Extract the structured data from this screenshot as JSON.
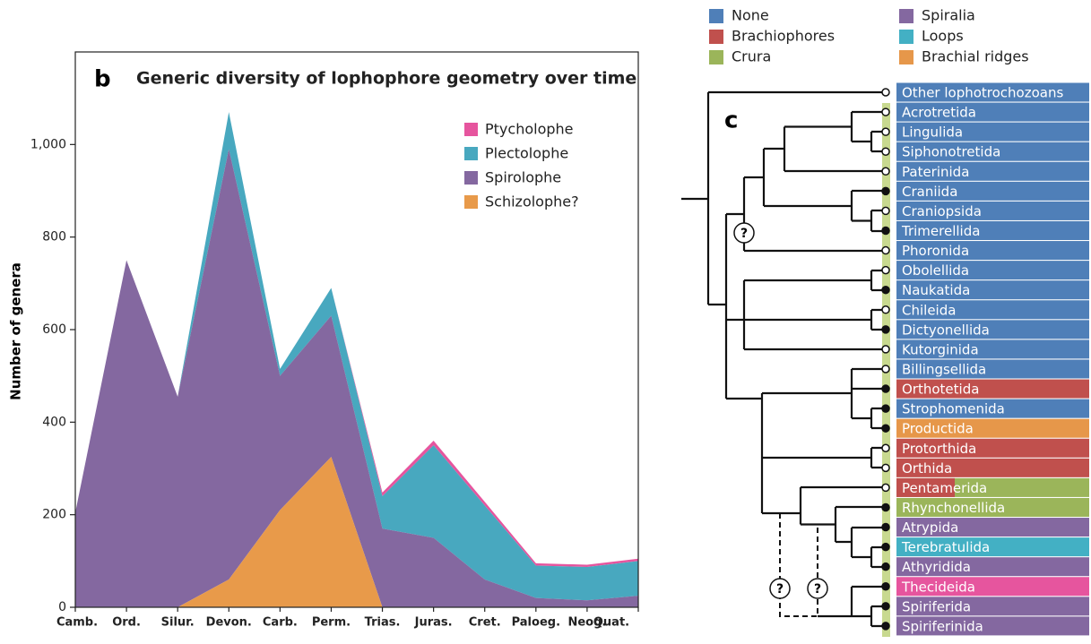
{
  "chart_data": {
    "type": "stacked_area",
    "panel": "b",
    "title": "Generic diversity of lophophore geometry over time",
    "ylabel": "Number of genera",
    "categories": [
      "Camb.",
      "Ord.",
      "Silur.",
      "Devon.",
      "Carb.",
      "Perm.",
      "Trias.",
      "Juras.",
      "Cret.",
      "Paloeg.",
      "Neog.",
      "Quat."
    ],
    "series": [
      {
        "name": "Schizolophe?",
        "color": "#e89a4a",
        "values": [
          0,
          0,
          0,
          60,
          210,
          325,
          0,
          0,
          0,
          0,
          0,
          0
        ]
      },
      {
        "name": "Spirolophe",
        "color": "#8468a0",
        "values": [
          205,
          750,
          455,
          930,
          290,
          305,
          170,
          150,
          60,
          20,
          15,
          25
        ]
      },
      {
        "name": "Plectolophe",
        "color": "#48a8bf",
        "values": [
          0,
          0,
          0,
          80,
          15,
          60,
          70,
          200,
          160,
          70,
          72,
          75
        ]
      },
      {
        "name": "Ptycholophe",
        "color": "#e6559e",
        "values": [
          0,
          0,
          0,
          0,
          0,
          0,
          8,
          10,
          8,
          5,
          5,
          5
        ]
      }
    ],
    "ylim": [
      0,
      1200
    ],
    "yticks": [
      0,
      200,
      400,
      600,
      800,
      {
        "value": 1000,
        "label": "1,000"
      }
    ]
  },
  "tree": {
    "panel": "c",
    "legend": [
      {
        "label": "None",
        "color": "#4f7fb8"
      },
      {
        "label": "Brachiophores",
        "color": "#c0504d"
      },
      {
        "label": "Crura",
        "color": "#9bb55a"
      },
      {
        "label": "Spiralia",
        "color": "#8468a0"
      },
      {
        "label": "Loops",
        "color": "#43b0c4"
      },
      {
        "label": "Brachial ridges",
        "color": "#e6974a"
      }
    ],
    "taxa": [
      {
        "label": "Other lophotrochozoans",
        "color": "#4f7fb8",
        "tip": "open"
      },
      {
        "label": "Acrotretida",
        "color": "#4f7fb8",
        "tip": "open"
      },
      {
        "label": "Lingulida",
        "color": "#4f7fb8",
        "tip": "open"
      },
      {
        "label": "Siphonotretida",
        "color": "#4f7fb8",
        "tip": "open"
      },
      {
        "label": "Paterinida",
        "color": "#4f7fb8",
        "tip": "open"
      },
      {
        "label": "Craniida",
        "color": "#4f7fb8",
        "tip": "filled"
      },
      {
        "label": "Craniopsida",
        "color": "#4f7fb8",
        "tip": "open"
      },
      {
        "label": "Trimerellida",
        "color": "#4f7fb8",
        "tip": "filled"
      },
      {
        "label": "Phoronida",
        "color": "#4f7fb8",
        "tip": "open"
      },
      {
        "label": "Obolellida",
        "color": "#4f7fb8",
        "tip": "open"
      },
      {
        "label": "Naukatida",
        "color": "#4f7fb8",
        "tip": "filled"
      },
      {
        "label": "Chileida",
        "color": "#4f7fb8",
        "tip": "open"
      },
      {
        "label": "Dictyonellida",
        "color": "#4f7fb8",
        "tip": "filled"
      },
      {
        "label": "Kutorginida",
        "color": "#4f7fb8",
        "tip": "open"
      },
      {
        "label": "Billingsellida",
        "color": "#4f7fb8",
        "tip": "open"
      },
      {
        "label": "Orthotetida",
        "color": "#c0504d",
        "tip": "filled"
      },
      {
        "label": "Strophomenida",
        "color": "#4f7fb8",
        "tip": "filled"
      },
      {
        "label": "Productida",
        "color": "#e6974a",
        "tip": "filled"
      },
      {
        "label": "Protorthida",
        "color": "#c0504d",
        "tip": "open"
      },
      {
        "label": "Orthida",
        "color": "#c0504d",
        "tip": "open"
      },
      {
        "label": "Pentamerida",
        "color": [
          "#c0504d",
          "#9bb55a"
        ],
        "tip": "open"
      },
      {
        "label": "Rhynchonellida",
        "color": "#9bb55a",
        "tip": "filled"
      },
      {
        "label": "Atrypida",
        "color": "#8468a0",
        "tip": "filled"
      },
      {
        "label": "Terebratulida",
        "color": "#43b0c4",
        "tip": "filled"
      },
      {
        "label": "Athyridida",
        "color": "#8468a0",
        "tip": "filled"
      },
      {
        "label": "Thecideida",
        "color": "#e6559e",
        "tip": "filled"
      },
      {
        "label": "Spiriferida",
        "color": "#8468a0",
        "tip": "filled"
      },
      {
        "label": "Spiriferinida",
        "color": "#8468a0",
        "tip": "filled"
      }
    ]
  }
}
